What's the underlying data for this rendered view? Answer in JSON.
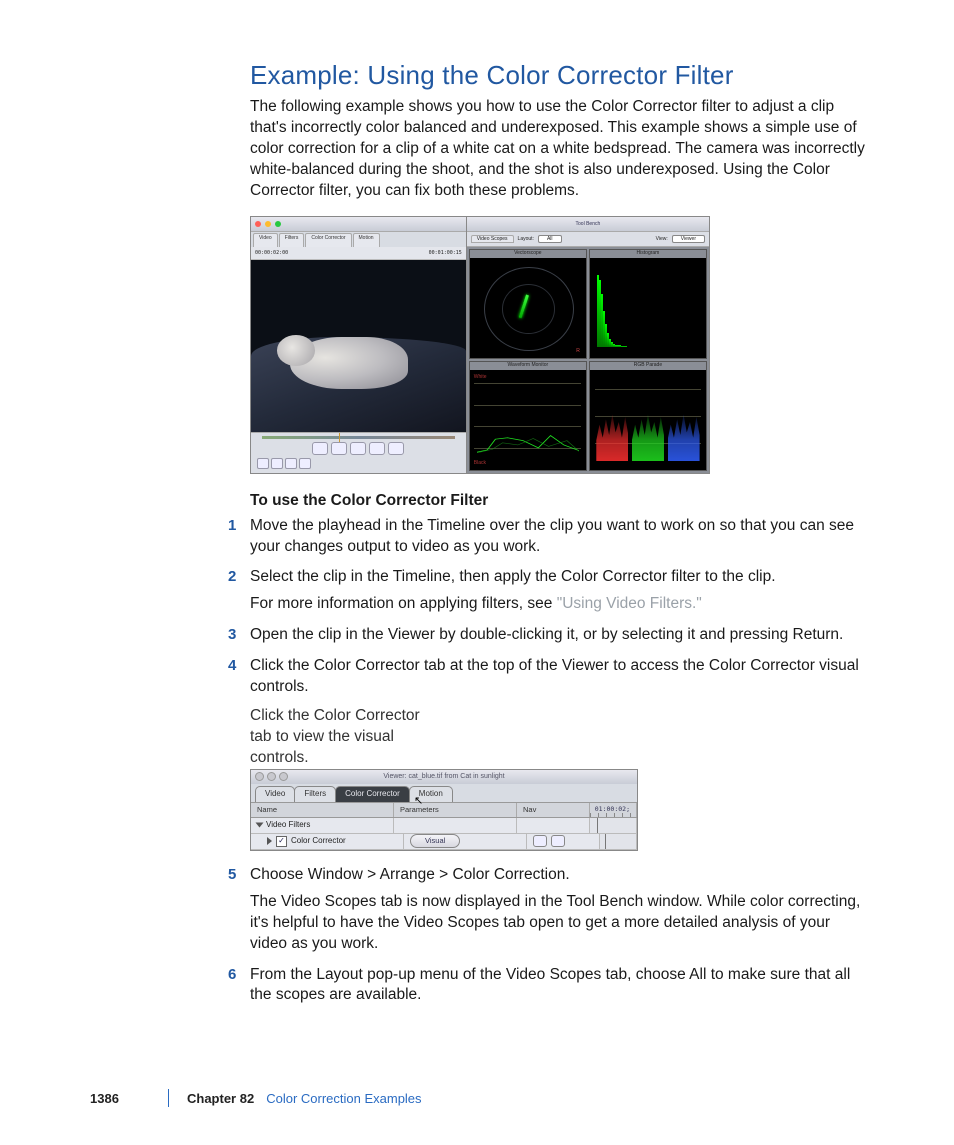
{
  "title": "Example: Using the Color Corrector Filter",
  "intro": "The following example shows you how to use the Color Corrector filter to adjust a clip that's incorrectly color balanced and underexposed. This example shows a simple use of color correction for a clip of a white cat on a white bedspread. The camera was incorrectly white-balanced during the shoot, and the shot is also underexposed. Using the Color Corrector filter, you can fix both these problems.",
  "subhead": "To use the Color Corrector Filter",
  "steps": {
    "s1": "Move the playhead in the Timeline over the clip you want to work on so that you can see your changes output to video as you work.",
    "s2": "Select the clip in the Timeline, then apply the Color Corrector filter to the clip.",
    "s2b_pre": "For more information on applying filters, see ",
    "s2b_link": "\"Using Video Filters.\"",
    "s3": "Open the clip in the Viewer by double-clicking it, or by selecting it and pressing Return.",
    "s4": "Click the Color Corrector tab at the top of the Viewer to access the Color Corrector visual controls.",
    "s5": "Choose Window > Arrange > Color Correction.",
    "s5b": "The Video Scopes tab is now displayed in the Tool Bench window. While color correcting, it's helpful to have the Video Scopes tab open to get a more detailed analysis of your video as you work.",
    "s6": "From the Layout pop-up menu of the Video Scopes tab, choose All to make sure that all the scopes are available."
  },
  "callout": "Click the Color Corrector tab to view the visual controls.",
  "figure1": {
    "viewer": {
      "tabs": [
        "Video",
        "Filters",
        "Color Corrector",
        "Motion"
      ],
      "tc_left": "00:00:02:00",
      "tc_right": "00:01:00:15"
    },
    "scopes": {
      "header_title": "Tool Bench",
      "tab": "Video Scopes",
      "layout_label": "Layout:",
      "layout_value": "All",
      "view_label": "View:",
      "view_value": "Viewer",
      "labels": {
        "vectorscope": "Vectorscope",
        "histogram": "Histogram",
        "waveform": "Waveform Monitor",
        "parade": "RGB Parade"
      },
      "histogram_heights_pct": [
        95,
        88,
        70,
        48,
        30,
        18,
        10,
        6,
        4,
        3,
        2,
        2,
        1,
        1,
        1,
        0,
        0,
        0,
        0,
        0,
        0,
        0,
        0,
        0,
        0
      ],
      "parade_colors": [
        "#ff3030",
        "#20e020",
        "#3060ff"
      ]
    }
  },
  "figure2": {
    "window_title": "Viewer: cat_blue.tif from Cat in sunlight",
    "tabs": {
      "video": "Video",
      "filters": "Filters",
      "cc": "Color Corrector",
      "motion": "Motion"
    },
    "cols": {
      "name": "Name",
      "params": "Parameters",
      "nav": "Nav"
    },
    "timecode": "01:00:02;",
    "rows": {
      "group": "Video Filters",
      "filter": "Color Corrector",
      "visual_btn": "Visual"
    }
  },
  "footer": {
    "page": "1386",
    "chapter": "Chapter 82",
    "name": "Color Correction Examples"
  },
  "colors": {
    "heading": "#2158a1",
    "link_grey": "#9aa1a8",
    "footer_rule": "#2a6bc2"
  }
}
